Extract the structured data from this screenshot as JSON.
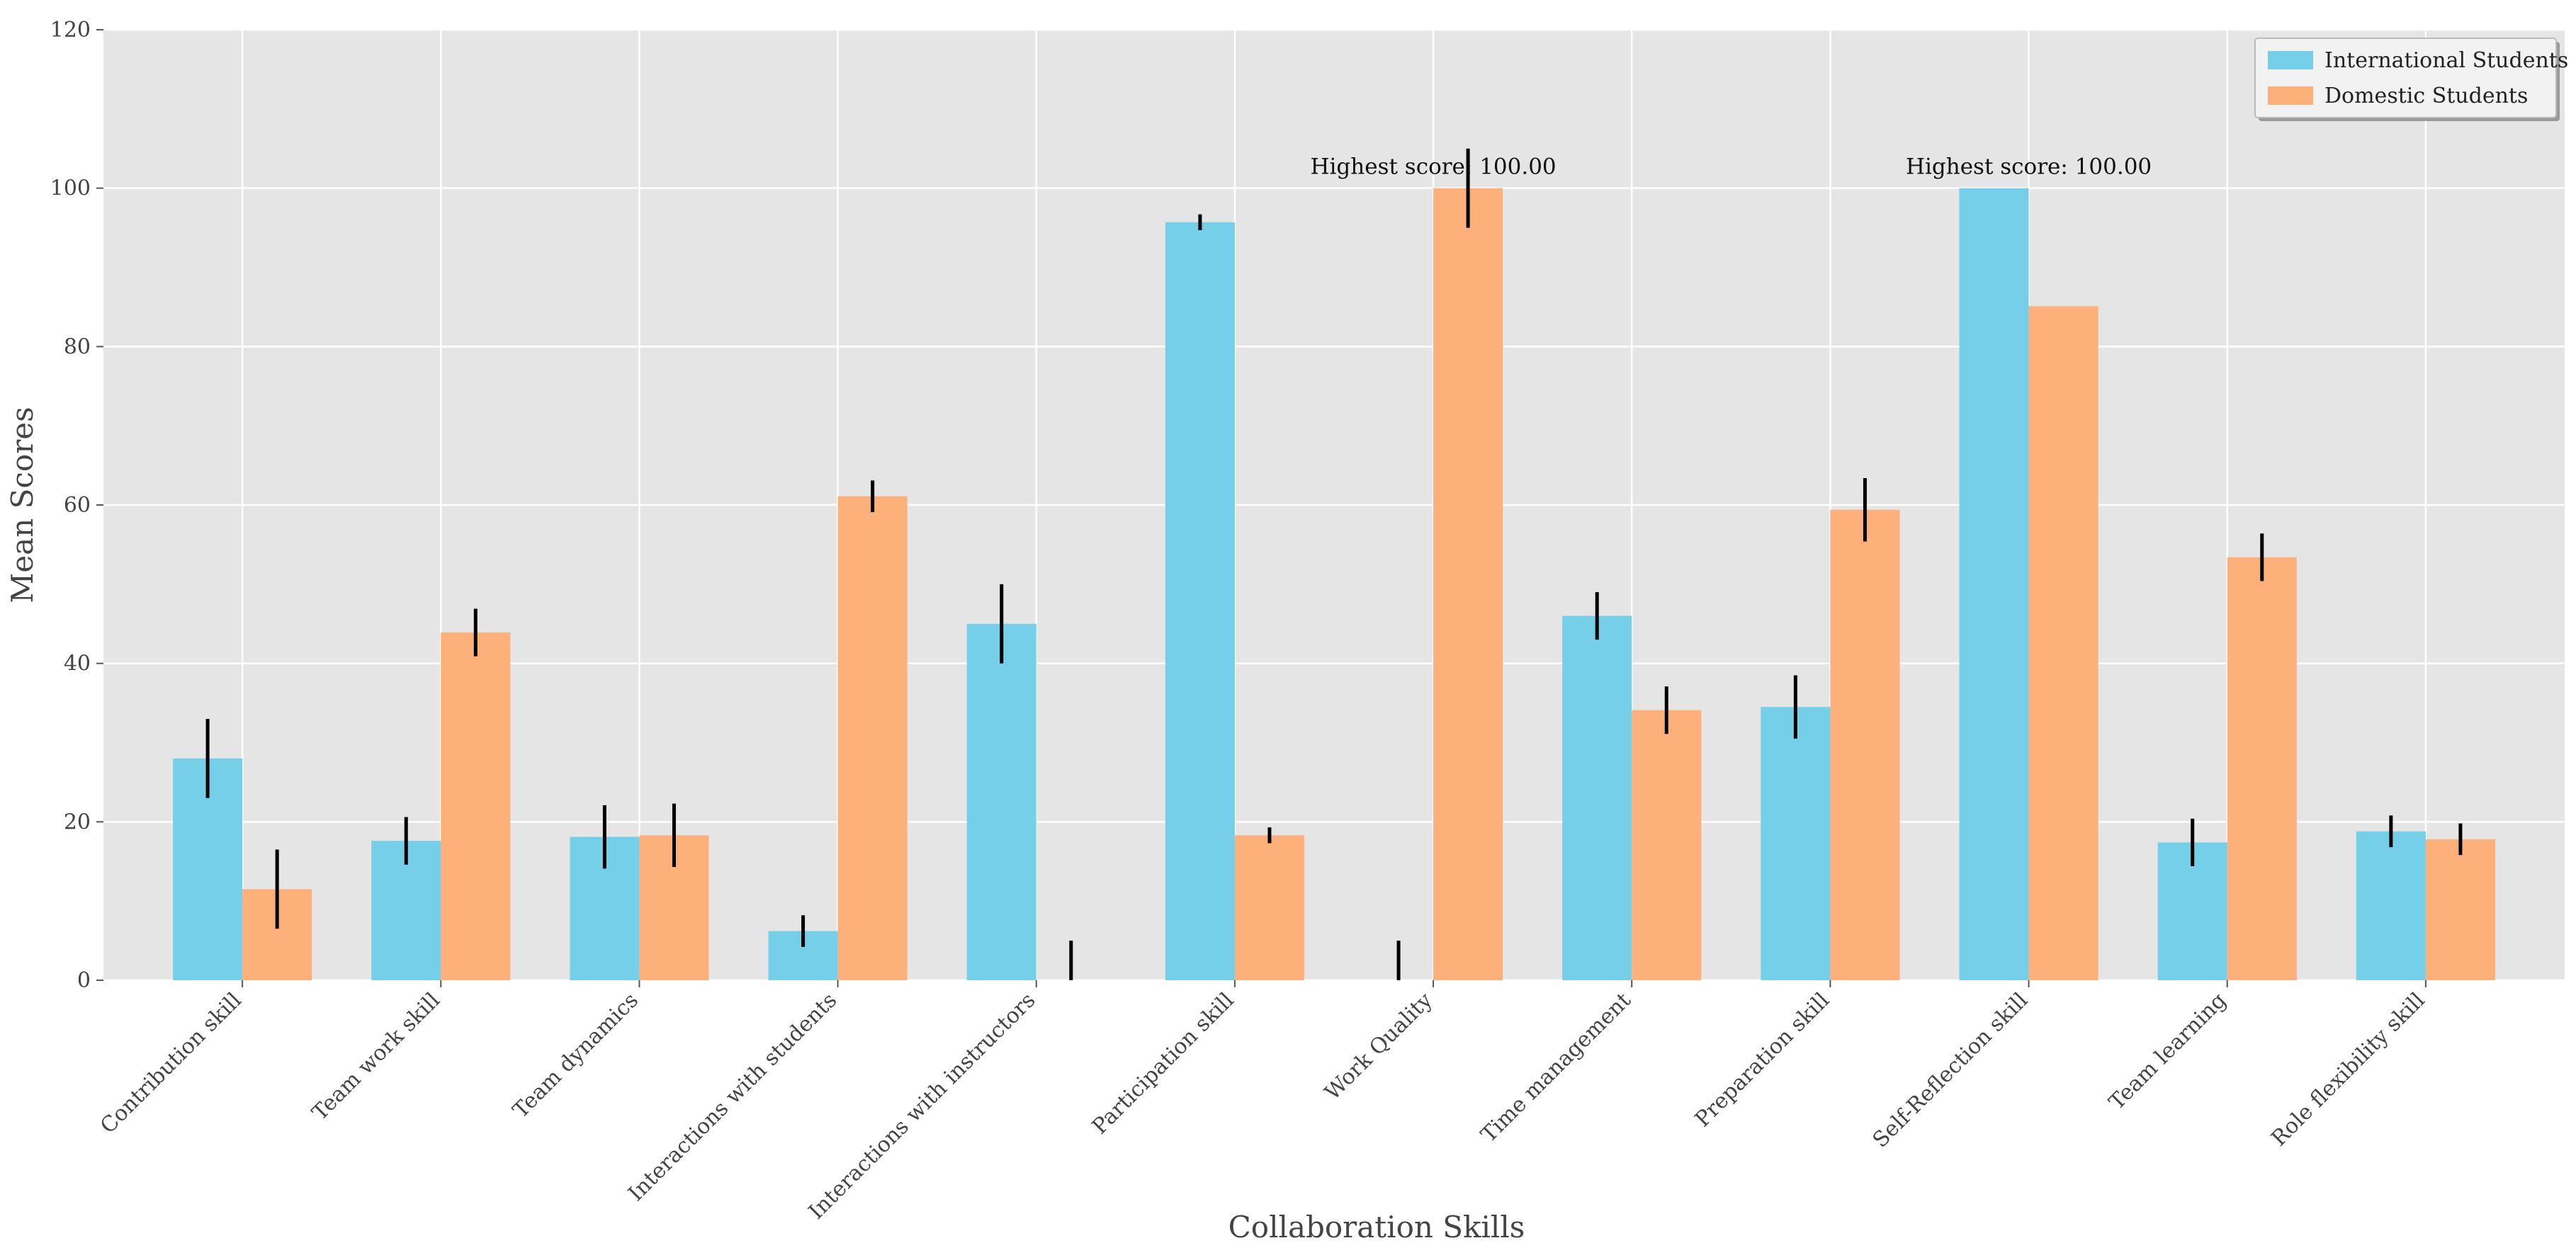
{
  "chart_data": {
    "type": "bar",
    "title": "",
    "xlabel": "Collaboration Skills",
    "ylabel": "Mean Scores",
    "ylim": [
      0,
      120
    ],
    "yticks": [
      0,
      20,
      40,
      60,
      80,
      100,
      120
    ],
    "grid": true,
    "legend_position": "top-right",
    "categories": [
      "Contribution skill",
      "Team work skill",
      "Team dynamics",
      "Interactions with students",
      "Interactions with instructors",
      "Participation skill",
      "Work Quality",
      "Time management",
      "Preparation skill",
      "Self-Reflection skill",
      "Team learning",
      "Role flexibility skill"
    ],
    "series": [
      {
        "name": "International Students",
        "color": "#76CFE9",
        "values": [
          28,
          17.6,
          18.1,
          6.2,
          45,
          95.7,
          0,
          46,
          34.5,
          100,
          17.4,
          18.8
        ],
        "errors": [
          5,
          3,
          4,
          2,
          5,
          1,
          5,
          3,
          4,
          0,
          3,
          2
        ]
      },
      {
        "name": "Domestic Students",
        "color": "#FDB07A",
        "values": [
          11.5,
          43.9,
          18.3,
          61.1,
          0,
          18.3,
          100,
          34.1,
          59.4,
          85.1,
          53.4,
          17.8
        ],
        "errors": [
          5,
          3,
          4,
          2,
          5,
          1,
          5,
          3,
          4,
          0,
          3,
          2
        ]
      }
    ],
    "annotations": [
      {
        "text": "Highest score: 100.00",
        "category": "Work Quality",
        "value": 100
      },
      {
        "text": "Highest score: 100.00",
        "category": "Self-Reflection skill",
        "value": 100
      }
    ]
  }
}
